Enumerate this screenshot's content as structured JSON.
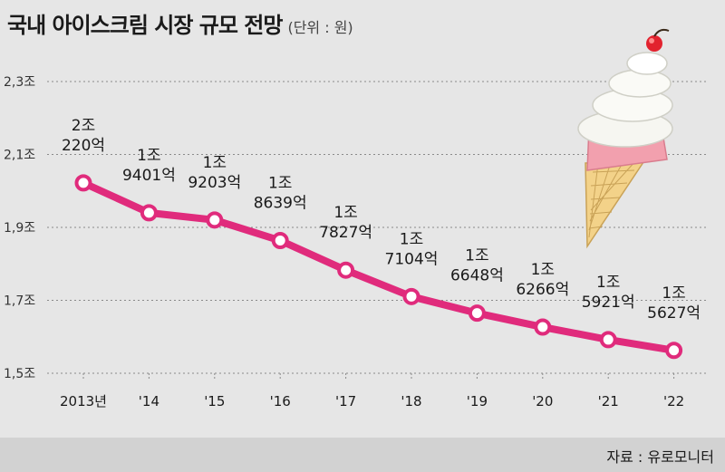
{
  "title": "국내 아이스크림 시장 규모 전망",
  "unit": "(단위 : 원)",
  "source": "자료 : 유로모니터",
  "colors": {
    "line": "#e02b7c",
    "marker_fill": "#ffffff",
    "grid": "#8a8a8a",
    "text": "#1a1a1a",
    "background": "#e6e6e6"
  },
  "chart_data": {
    "type": "line",
    "title": "국내 아이스크림 시장 규모 전망",
    "xlabel": "",
    "ylabel": "",
    "categories": [
      "2013년",
      "'14",
      "'15",
      "'16",
      "'17",
      "'18",
      "'19",
      "'20",
      "'21",
      "'22"
    ],
    "series": [
      {
        "values": [
          2.022,
          1.9401,
          1.9203,
          1.8639,
          1.7827,
          1.7104,
          1.6648,
          1.6266,
          1.5921,
          1.5627
        ]
      }
    ],
    "data_labels": [
      [
        "2조",
        "220억"
      ],
      [
        "1조",
        "9401억"
      ],
      [
        "1조",
        "9203억"
      ],
      [
        "1조",
        "8639억"
      ],
      [
        "1조",
        "7827억"
      ],
      [
        "1조",
        "7104억"
      ],
      [
        "1조",
        "6648억"
      ],
      [
        "1조",
        "6266억"
      ],
      [
        "1조",
        "5921억"
      ],
      [
        "1조",
        "5627억"
      ]
    ],
    "y_ticks": [
      1.5,
      1.7,
      1.9,
      2.1,
      2.3
    ],
    "y_tick_labels": [
      "1,5조",
      "1,7조",
      "1,9조",
      "2,1조",
      "2,3조"
    ],
    "ylim": [
      1.5,
      2.3
    ],
    "grid": true,
    "grid_style": "dotted-horizontal"
  }
}
